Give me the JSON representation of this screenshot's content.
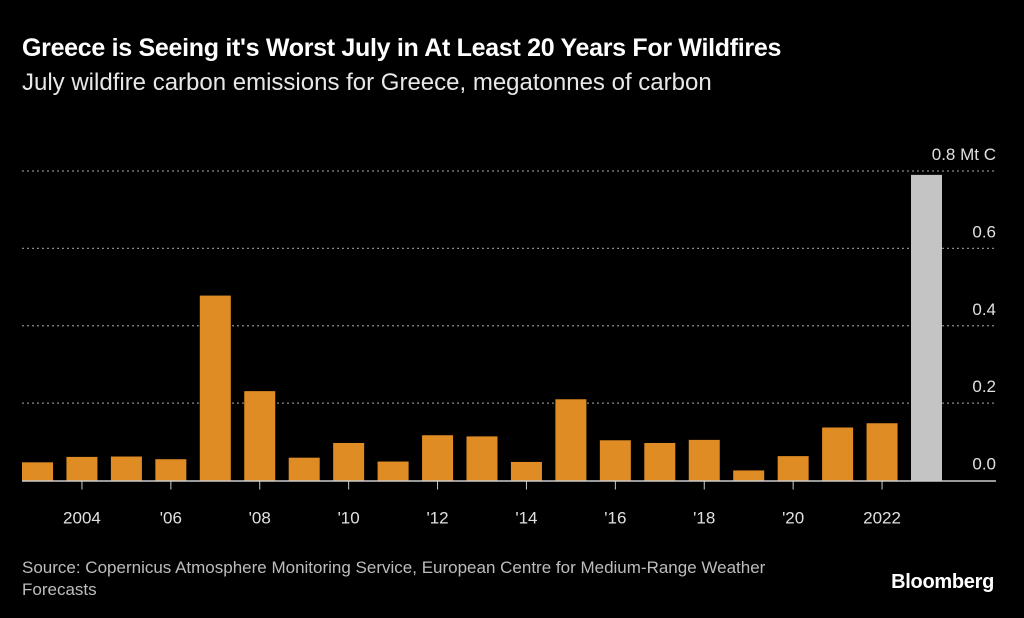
{
  "title": "Greece is Seeing it's Worst July in At Least 20 Years For Wildfires",
  "subtitle": "July wildfire carbon emissions for Greece, megatonnes of carbon",
  "source": "Source: Copernicus Atmosphere Monitoring Service, European Centre for Medium-Range Weather Forecasts",
  "logo": "Bloomberg",
  "chart_data": {
    "type": "bar",
    "title": "Greece is Seeing it's Worst July in At Least 20 Years For Wildfires",
    "ylabel": "megatonnes of carbon",
    "ylim": [
      0,
      0.8
    ],
    "categories": [
      "2003",
      "2004",
      "2005",
      "2006",
      "2007",
      "2008",
      "2009",
      "2010",
      "2011",
      "2012",
      "2013",
      "2014",
      "2015",
      "2016",
      "2017",
      "2018",
      "2019",
      "2020",
      "2021",
      "2022",
      "2023"
    ],
    "values": [
      0.047,
      0.061,
      0.062,
      0.055,
      0.478,
      0.231,
      0.059,
      0.097,
      0.049,
      0.117,
      0.114,
      0.048,
      0.21,
      0.104,
      0.097,
      0.105,
      0.026,
      0.063,
      0.137,
      0.148,
      0.79
    ],
    "highlight_index": 20,
    "colors": {
      "bar": "#e08c24",
      "highlight": "#c4c4c4",
      "grid": "#8a8a8a",
      "axis": "#cccccc"
    },
    "yticks": [
      {
        "value": 0,
        "label": "0.0"
      },
      {
        "value": 0.2,
        "label": "0.2"
      },
      {
        "value": 0.4,
        "label": "0.4"
      },
      {
        "value": 0.6,
        "label": "0.6"
      },
      {
        "value": 0.8,
        "label": "0.8 Mt C"
      }
    ],
    "xticks": [
      {
        "index": 1,
        "label": "2004"
      },
      {
        "index": 3,
        "label": "'06"
      },
      {
        "index": 5,
        "label": "'08"
      },
      {
        "index": 7,
        "label": "'10"
      },
      {
        "index": 9,
        "label": "'12"
      },
      {
        "index": 11,
        "label": "'14"
      },
      {
        "index": 13,
        "label": "'16"
      },
      {
        "index": 15,
        "label": "'18"
      },
      {
        "index": 17,
        "label": "'20"
      },
      {
        "index": 19,
        "label": "2022"
      }
    ],
    "grid": true
  }
}
